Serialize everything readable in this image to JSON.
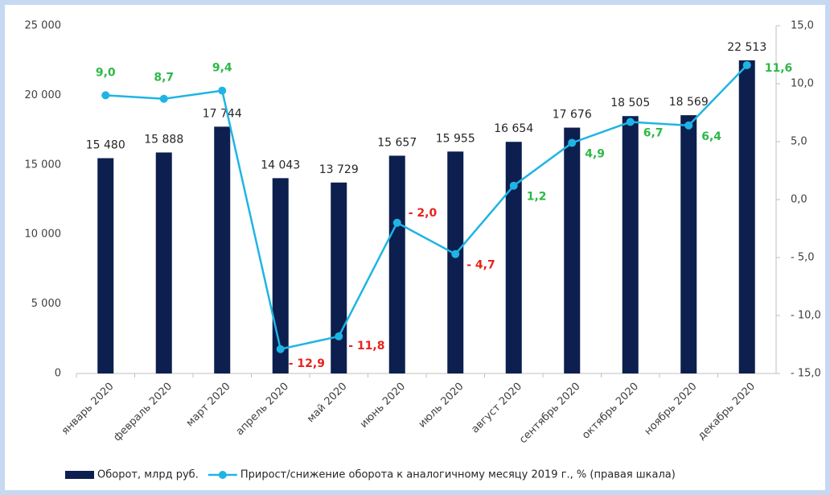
{
  "chart_data": {
    "type": "bar",
    "categories": [
      "январь 2020",
      "февраль 2020",
      "март 2020",
      "апрель 2020",
      "май 2020",
      "июнь 2020",
      "июль 2020",
      "август 2020",
      "сентябрь 2020",
      "октябрь 2020",
      "ноябрь 2020",
      "декабрь 2020"
    ],
    "series": [
      {
        "name": "Оборот, млрд руб.",
        "type": "bar",
        "color": "#0c1f4f",
        "values": [
          15480,
          15888,
          17744,
          14043,
          13729,
          15657,
          15955,
          16654,
          17676,
          18505,
          18569,
          22513
        ],
        "value_labels": [
          "15 480",
          "15 888",
          "17 744",
          "14 043",
          "13 729",
          "15 657",
          "15 955",
          "16 654",
          "17 676",
          "18 505",
          "18 569",
          "22 513"
        ]
      },
      {
        "name": "Прирост/снижение оборота к аналогичному месяцу 2019 г., % (правая шкала)",
        "type": "line",
        "axis": "y2",
        "color": "#1fb4e4",
        "values": [
          9.0,
          8.7,
          9.4,
          -12.9,
          -11.8,
          -2.0,
          -4.7,
          1.2,
          4.9,
          6.7,
          6.4,
          11.6
        ],
        "value_labels": [
          "9,0",
          "8,7",
          "9,4",
          "- 12,9",
          "- 11,8",
          "- 2,0",
          "- 4,7",
          "1,2",
          "4,9",
          "6,7",
          "6,4",
          "11,6"
        ]
      }
    ],
    "label_colors": {
      "positive": "#2eb848",
      "negative": "#e8231e"
    },
    "ylim": [
      0,
      25000
    ],
    "yticks": [
      0,
      {
        "value": 5000,
        "label": "5 000"
      },
      {
        "value": 10000,
        "label": "10 000"
      },
      {
        "value": 15000,
        "label": "15 000"
      },
      {
        "value": 20000,
        "label": "20 000"
      },
      {
        "value": 25000,
        "label": "25 000"
      }
    ],
    "y2lim": [
      -15,
      15
    ],
    "y2ticks": [
      {
        "value": -15,
        "label": "- 15,0"
      },
      {
        "value": -10,
        "label": "- 10,0"
      },
      {
        "value": -5,
        "label": "- 5,0"
      },
      {
        "value": 0,
        "label": "0,0"
      },
      {
        "value": 5,
        "label": "5,0"
      },
      {
        "value": 10,
        "label": "10,0"
      },
      {
        "value": 15,
        "label": "15,0"
      }
    ],
    "legend": "bottom",
    "grid": false
  }
}
